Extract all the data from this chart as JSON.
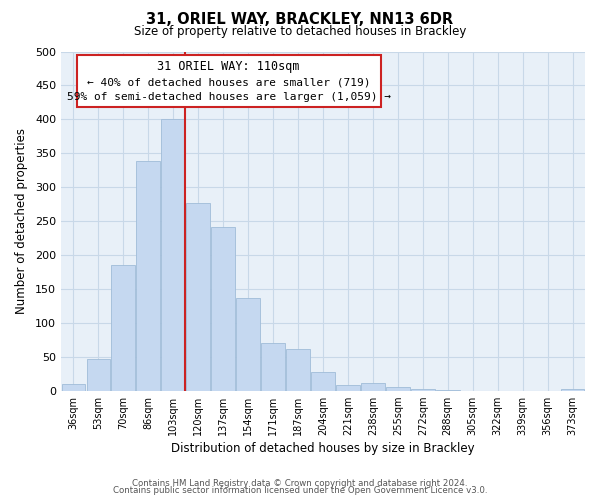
{
  "title": "31, ORIEL WAY, BRACKLEY, NN13 6DR",
  "subtitle": "Size of property relative to detached houses in Brackley",
  "xlabel": "Distribution of detached houses by size in Brackley",
  "ylabel": "Number of detached properties",
  "bar_labels": [
    "36sqm",
    "53sqm",
    "70sqm",
    "86sqm",
    "103sqm",
    "120sqm",
    "137sqm",
    "154sqm",
    "171sqm",
    "187sqm",
    "204sqm",
    "221sqm",
    "238sqm",
    "255sqm",
    "272sqm",
    "288sqm",
    "305sqm",
    "322sqm",
    "339sqm",
    "356sqm",
    "373sqm"
  ],
  "bar_values": [
    10,
    47,
    185,
    338,
    400,
    277,
    242,
    137,
    70,
    62,
    27,
    8,
    12,
    5,
    3,
    1,
    0,
    0,
    0,
    0,
    2
  ],
  "bar_color": "#c5d8f0",
  "bar_edge_color": "#a0bcd8",
  "highlight_line_index": 4,
  "highlight_line_color": "#cc2222",
  "annotation_title": "31 ORIEL WAY: 110sqm",
  "annotation_line1": "← 40% of detached houses are smaller (719)",
  "annotation_line2": "59% of semi-detached houses are larger (1,059) →",
  "ylim": [
    0,
    500
  ],
  "yticks": [
    0,
    50,
    100,
    150,
    200,
    250,
    300,
    350,
    400,
    450,
    500
  ],
  "footer_line1": "Contains HM Land Registry data © Crown copyright and database right 2024.",
  "footer_line2": "Contains public sector information licensed under the Open Government Licence v3.0.",
  "background_color": "#ffffff",
  "plot_bg_color": "#e8f0f8",
  "grid_color": "#c8d8e8"
}
